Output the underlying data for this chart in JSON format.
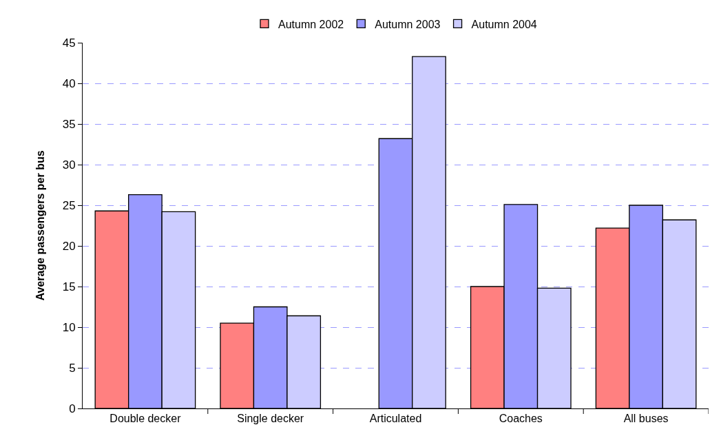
{
  "chart_data": {
    "type": "bar",
    "ylabel": "Average passengers per bus",
    "categories": [
      "Double decker",
      "Single decker",
      "Articulated",
      "Coaches",
      "All buses"
    ],
    "series": [
      {
        "name": "Autumn 2002",
        "color": "#ff8080",
        "values": [
          24.3,
          10.5,
          null,
          15.0,
          22.2
        ]
      },
      {
        "name": "Autumn 2003",
        "color": "#9999ff",
        "values": [
          26.3,
          12.5,
          33.2,
          25.1,
          25.0
        ]
      },
      {
        "name": "Autumn 2004",
        "color": "#ccccff",
        "values": [
          24.2,
          11.4,
          43.3,
          14.8,
          23.2
        ]
      }
    ],
    "ylim": [
      0,
      45
    ],
    "yticks": [
      0,
      5,
      10,
      15,
      20,
      25,
      30,
      35,
      40,
      45
    ],
    "grid": "y",
    "legend": "top"
  }
}
